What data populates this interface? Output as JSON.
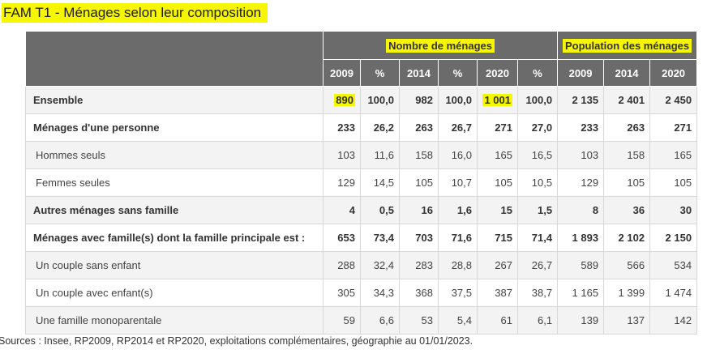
{
  "title": "FAM T1 - Ménages selon leur composition",
  "header": {
    "group1": "Nombre de ménages",
    "group2": "Population des ménages",
    "columns": [
      "2009",
      "%",
      "2014",
      "%",
      "2020",
      "%",
      "2009",
      "2014",
      "2020"
    ]
  },
  "rows": [
    {
      "label": "Ensemble",
      "values": [
        "890",
        "100,0",
        "982",
        "100,0",
        "1 001",
        "100,0",
        "2 135",
        "2 401",
        "2 450"
      ]
    },
    {
      "label": "Ménages d'une personne",
      "values": [
        "233",
        "26,2",
        "263",
        "26,7",
        "271",
        "27,0",
        "233",
        "263",
        "271"
      ]
    },
    {
      "label": "Hommes seuls",
      "values": [
        "103",
        "11,6",
        "158",
        "16,0",
        "165",
        "16,5",
        "103",
        "158",
        "165"
      ]
    },
    {
      "label": "Femmes seules",
      "values": [
        "129",
        "14,5",
        "105",
        "10,7",
        "105",
        "10,5",
        "129",
        "105",
        "105"
      ]
    },
    {
      "label": "Autres ménages sans famille",
      "values": [
        "4",
        "0,5",
        "16",
        "1,6",
        "15",
        "1,5",
        "8",
        "36",
        "30"
      ]
    },
    {
      "label": "Ménages avec famille(s) dont la famille principale est :",
      "values": [
        "653",
        "73,4",
        "703",
        "71,6",
        "715",
        "71,4",
        "1 893",
        "2 102",
        "2 150"
      ]
    },
    {
      "label": "Un couple sans enfant",
      "values": [
        "288",
        "32,4",
        "283",
        "28,8",
        "267",
        "26,7",
        "589",
        "566",
        "534"
      ]
    },
    {
      "label": "Un couple avec enfant(s)",
      "values": [
        "305",
        "34,3",
        "368",
        "37,5",
        "387",
        "38,7",
        "1 165",
        "1 399",
        "1 474"
      ]
    },
    {
      "label": "Une famille monoparentale",
      "values": [
        "59",
        "6,6",
        "53",
        "5,4",
        "61",
        "6,1",
        "139",
        "137",
        "142"
      ]
    }
  ],
  "source": "Sources : Insee, RP2009, RP2014 et RP2020, exploitations complémentaires, géographie au 01/01/2023."
}
